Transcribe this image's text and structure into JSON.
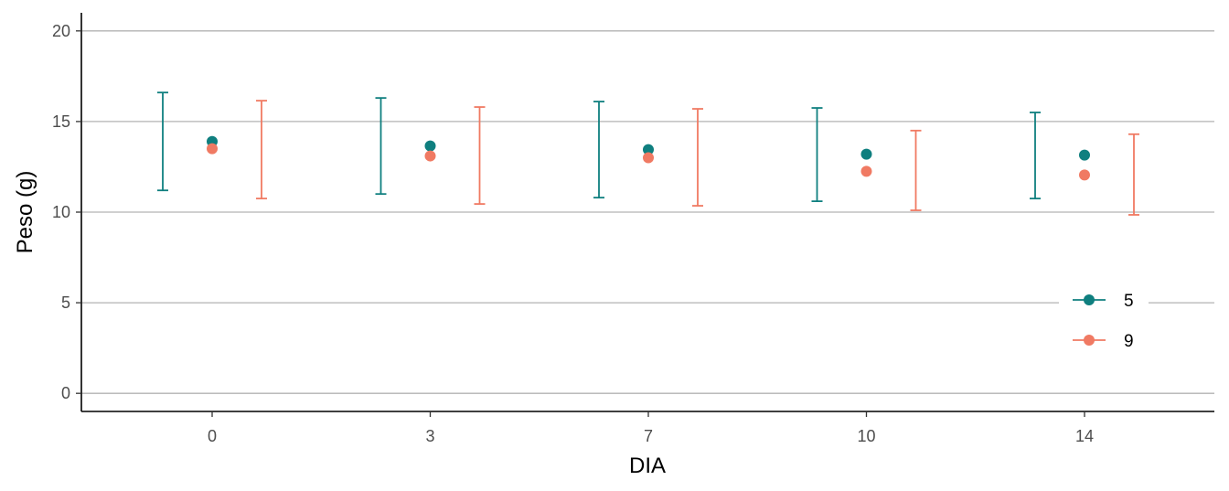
{
  "chart_data": {
    "type": "scatter",
    "title": "",
    "xlabel": "DIA",
    "ylabel": "Peso (g)",
    "categories": [
      "0",
      "3",
      "7",
      "10",
      "14"
    ],
    "y_ticks": [
      "0",
      "5",
      "10",
      "15",
      "20"
    ],
    "ylim": [
      -1,
      21
    ],
    "grid": "horizontal",
    "legend_position": "bottom-right",
    "series": [
      {
        "name": "5",
        "color": "#0f7f7f",
        "values": [
          13.9,
          13.65,
          13.45,
          13.2,
          13.15
        ],
        "error_lower": [
          11.2,
          11.0,
          10.8,
          10.6,
          10.75
        ],
        "error_upper": [
          16.6,
          16.3,
          16.1,
          15.75,
          15.5
        ]
      },
      {
        "name": "9",
        "color": "#f07a63",
        "values": [
          13.5,
          13.1,
          13.0,
          12.25,
          12.05
        ],
        "error_lower": [
          10.75,
          10.45,
          10.35,
          10.1,
          9.85
        ],
        "error_upper": [
          16.15,
          15.8,
          15.7,
          14.5,
          14.3
        ]
      }
    ]
  }
}
